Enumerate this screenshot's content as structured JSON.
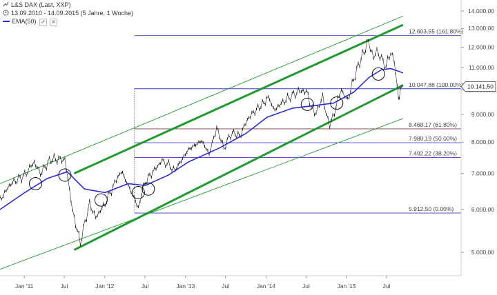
{
  "header": {
    "title": "L&S DAX (Last, XXP)",
    "dates": "13.09.2010 - 14.09.2015 (5 Jahre, 1 Woche)",
    "ema_label": "EMA(50)"
  },
  "colors": {
    "price": "#222222",
    "ema": "#2a2ad6",
    "channel": "#1f9a2f",
    "fib_blue": "#3a3acd",
    "fib_brown": "#7a3a3a"
  },
  "chart_data": {
    "type": "line",
    "title": "L&S DAX (Last, XXP)",
    "xlabel": "",
    "ylabel": "",
    "y_scale": "log",
    "ylim": [
      4700,
      14500
    ],
    "x_range": [
      "2010-09-13",
      "2015-09-14"
    ],
    "x_ticks": [
      "Jan '11",
      "Jul",
      "Jan '12",
      "Jul",
      "Jan '13",
      "Jul",
      "Jan '14",
      "Jul",
      "Jan '15",
      "Jul"
    ],
    "y_ticks": [
      "14.000,00",
      "13.000,00",
      "12.000,00",
      "11.000,00",
      "10.000,00",
      "9.000,00",
      "8.000,00",
      "7.000,00",
      "6.000,00",
      "5.000,00"
    ],
    "y_tick_values": [
      14000,
      13000,
      12000,
      11000,
      10000,
      9000,
      8000,
      7000,
      6000,
      5000
    ],
    "series": [
      {
        "name": "L&S DAX (Last, XXP)",
        "x": [
          "2010-09-13",
          "2010-11-01",
          "2011-01-03",
          "2011-02-15",
          "2011-03-15",
          "2011-05-02",
          "2011-07-04",
          "2011-08-08",
          "2011-09-12",
          "2011-10-24",
          "2011-11-21",
          "2012-01-02",
          "2012-03-15",
          "2012-04-16",
          "2012-06-01",
          "2012-07-02",
          "2012-09-17",
          "2012-11-15",
          "2013-01-14",
          "2013-03-15",
          "2013-04-18",
          "2013-05-22",
          "2013-06-24",
          "2013-08-01",
          "2013-09-02",
          "2013-10-15",
          "2013-12-02",
          "2014-01-17",
          "2014-02-03",
          "2014-04-01",
          "2014-06-10",
          "2014-07-03",
          "2014-08-08",
          "2014-09-15",
          "2014-10-16",
          "2014-11-14",
          "2014-12-08",
          "2015-01-05",
          "2015-02-16",
          "2015-04-10",
          "2015-05-04",
          "2015-05-18",
          "2015-06-29",
          "2015-07-20",
          "2015-08-05",
          "2015-08-24",
          "2015-09-01",
          "2015-09-14"
        ],
        "values": [
          6250,
          6700,
          6950,
          7350,
          7000,
          7450,
          7420,
          5950,
          5200,
          6150,
          5800,
          6150,
          7080,
          6650,
          6050,
          6750,
          7400,
          7100,
          7750,
          8050,
          7600,
          8500,
          7800,
          8350,
          8200,
          8900,
          9300,
          9700,
          9150,
          9600,
          10000,
          9900,
          9000,
          9650,
          8550,
          9300,
          10000,
          9550,
          10900,
          12300,
          11500,
          11800,
          11050,
          11800,
          11300,
          9600,
          10050,
          10140
        ]
      },
      {
        "name": "EMA(50)",
        "x": [
          "2010-09-13",
          "2011-01-03",
          "2011-04-15",
          "2011-07-15",
          "2011-10-01",
          "2012-01-02",
          "2012-04-16",
          "2012-07-02",
          "2012-10-15",
          "2013-01-14",
          "2013-06-03",
          "2013-10-01",
          "2014-01-06",
          "2014-05-01",
          "2014-08-08",
          "2014-11-03",
          "2015-02-02",
          "2015-04-13",
          "2015-06-08",
          "2015-07-20",
          "2015-09-14"
        ],
        "values": [
          6000,
          6450,
          6850,
          7050,
          6550,
          6450,
          6700,
          6650,
          6950,
          7350,
          7800,
          8300,
          8900,
          9250,
          9350,
          9450,
          9900,
          10550,
          10900,
          10950,
          10750
        ]
      }
    ],
    "fib_levels": [
      {
        "value": 12603.55,
        "label": "12.603,55 (161.80%)"
      },
      {
        "value": 10047.88,
        "label": "10.047,88 (100.00%)"
      },
      {
        "value": 8468.17,
        "label": "8.468,17 (61.80%)"
      },
      {
        "value": 7980.19,
        "label": "7.980,19 (50.00%)"
      },
      {
        "value": 7492.22,
        "label": "7.492,22 (38.20%)"
      },
      {
        "value": 5912.5,
        "label": "5.912,50 (0.00%)"
      }
    ],
    "channel": {
      "upper": [
        [
          "2011-08-15",
          7000
        ],
        [
          "2015-09-14",
          13200
        ]
      ],
      "lower": [
        [
          "2011-08-15",
          5050
        ],
        [
          "2015-09-14",
          10200
        ]
      ],
      "outer_upper": [
        [
          "2010-09-13",
          6700
        ],
        [
          "2015-09-14",
          13700
        ]
      ],
      "outer_lower": [
        [
          "2010-09-13",
          4650
        ],
        [
          "2015-09-14",
          8850
        ]
      ]
    },
    "circled_points": [
      [
        "2011-02-21",
        6700
      ],
      [
        "2011-07-04",
        6950
      ],
      [
        "2011-12-15",
        6250
      ],
      [
        "2012-06-01",
        6450
      ],
      [
        "2012-07-16",
        6550
      ],
      [
        "2014-07-07",
        9400
      ],
      [
        "2014-11-17",
        9450
      ],
      [
        "2015-05-25",
        10700
      ]
    ],
    "last_value": "10.141,50",
    "legend": "top-left",
    "grid": false
  }
}
